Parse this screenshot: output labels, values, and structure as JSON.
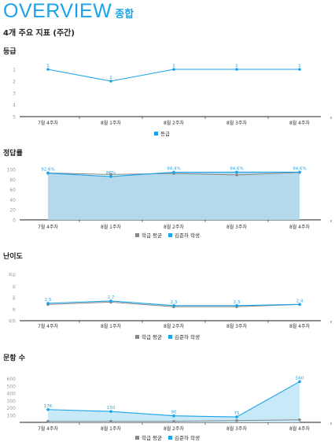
{
  "header": {
    "title": "OVERVIEW",
    "title_kr": "종합",
    "subtitle": "4개 주요 지표 (주간)"
  },
  "colors": {
    "accent": "#1aa3e8",
    "avg": "#888888",
    "student": "#1aa3e8",
    "fill": "#b5d9ec",
    "fill2": "#c8e9f7"
  },
  "chart_data": [
    {
      "type": "line",
      "title": "등급",
      "categories": [
        "7월 4주차",
        "8월 1주차",
        "8월 2주차",
        "8월 3주차",
        "8월 4주차"
      ],
      "yticks": [
        "1",
        "2",
        "3",
        "4",
        "5"
      ],
      "ylim": [
        1,
        5
      ],
      "inverted": true,
      "legend": "bottom",
      "series": [
        {
          "name": "등급",
          "values": [
            1,
            2,
            1,
            1,
            1
          ],
          "labels": [
            "1",
            "2",
            "1",
            "1",
            "1"
          ]
        }
      ]
    },
    {
      "type": "area",
      "title": "정답률",
      "categories": [
        "7월 4주차",
        "8월 1주차",
        "8월 2주차",
        "8월 3주차",
        "8월 4주차"
      ],
      "yticks": [
        "0",
        "20",
        "40",
        "60",
        "80",
        "100"
      ],
      "ylim": [
        0,
        100
      ],
      "legend": "bottom",
      "series": [
        {
          "name": "학급 평균",
          "values": [
            93,
            90,
            92,
            89,
            94
          ]
        },
        {
          "name": "김준하 학생",
          "values": [
            92.6,
            86,
            94.4,
            94.6,
            94.6
          ],
          "labels": [
            "92.6%",
            "86%",
            "94.4%",
            "94.6%",
            "94.6%"
          ]
        }
      ]
    },
    {
      "type": "line",
      "title": "난이도",
      "categories": [
        "7월 4주차",
        "8월 1주차",
        "8월 2주차",
        "8월 3주차",
        "8월 4주차"
      ],
      "yticks": [
        "최하",
        "하",
        "중",
        "상",
        "최상"
      ],
      "ylim": [
        1,
        5
      ],
      "legend": "bottom",
      "series": [
        {
          "name": "학급 평균",
          "values": [
            2.4,
            2.6,
            2.2,
            2.2,
            2.4
          ]
        },
        {
          "name": "김준하 학생",
          "values": [
            2.5,
            2.7,
            2.3,
            2.3,
            2.4
          ],
          "labels": [
            "2.5",
            "2.7",
            "2.3",
            "2.3",
            "2.4"
          ]
        }
      ]
    },
    {
      "type": "area",
      "title": "문항 수",
      "categories": [
        "7월 4주차",
        "8월 1주차",
        "8월 2주차",
        "8월 3주차",
        "8월 4주차"
      ],
      "yticks": [
        "100",
        "200",
        "300",
        "400",
        "500",
        "600"
      ],
      "ylim": [
        0,
        650
      ],
      "legend": "bottom",
      "series": [
        {
          "name": "학급 평균",
          "values": [
            15,
            15,
            15,
            25,
            35
          ]
        },
        {
          "name": "김준하 학생",
          "values": [
            176,
            150,
            90,
            75,
            560
          ],
          "labels": [
            "176",
            "150",
            "90",
            "75",
            "560"
          ]
        }
      ]
    }
  ]
}
